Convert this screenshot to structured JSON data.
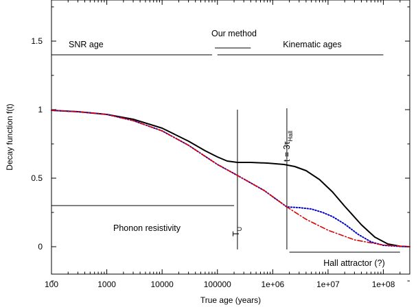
{
  "chart_data": {
    "type": "line",
    "xlabel": "True age (years)",
    "ylabel": "Decay function f(t)",
    "xscale": "log",
    "xlim": [
      100,
      300000000
    ],
    "ylim": [
      -0.2,
      1.8
    ],
    "x_tick_labels": [
      "100",
      "1000",
      "10000",
      "100000",
      "1e+06",
      "1e+07",
      "1e+08"
    ],
    "y_tick_labels": [
      "0",
      "0.5",
      "1",
      "1.5"
    ],
    "y_tick_values": [
      0,
      0.5,
      1,
      1.5
    ],
    "colors": {
      "black": "#000000",
      "blue": "#0000cc",
      "red": "#dd0000"
    },
    "series": [
      {
        "style": "solid",
        "color": "#000000",
        "x": [
          100,
          300,
          1000,
          3000,
          10000,
          30000,
          60000,
          100000,
          150000,
          230000,
          400000,
          800000,
          1600000,
          2500000,
          4000000,
          7000000,
          12000000,
          20000000,
          40000000,
          70000000,
          120000000,
          200000000,
          300000000
        ],
        "y": [
          0.995,
          0.985,
          0.965,
          0.93,
          0.865,
          0.77,
          0.7,
          0.655,
          0.625,
          0.615,
          0.615,
          0.61,
          0.6,
          0.585,
          0.555,
          0.49,
          0.4,
          0.295,
          0.16,
          0.07,
          0.02,
          0.003,
          0.0
        ]
      },
      {
        "style": "dotted",
        "color": "#0000cc",
        "x": [
          100,
          300,
          1000,
          3000,
          10000,
          30000,
          100000,
          230000,
          700000,
          1800000,
          3000000,
          5000000,
          8000000,
          12000000,
          20000000,
          35000000,
          60000000,
          100000000,
          200000000,
          300000000
        ],
        "y": [
          0.995,
          0.985,
          0.965,
          0.92,
          0.845,
          0.74,
          0.6,
          0.52,
          0.41,
          0.29,
          0.285,
          0.275,
          0.25,
          0.22,
          0.165,
          0.09,
          0.035,
          0.01,
          0.002,
          0.0
        ]
      },
      {
        "style": "dashdot",
        "color": "#dd0000",
        "x": [
          100,
          300,
          1000,
          3000,
          10000,
          30000,
          100000,
          230000,
          700000,
          1800000,
          4000000,
          10000000,
          30000000,
          100000000,
          300000000
        ],
        "y": [
          0.995,
          0.985,
          0.965,
          0.92,
          0.845,
          0.74,
          0.6,
          0.52,
          0.41,
          0.29,
          0.2,
          0.12,
          0.05,
          0.012,
          0.0
        ]
      }
    ],
    "annotations": {
      "snr_age": "SNR age",
      "our_method": "Our method",
      "kinematic_ages": "Kinematic ages",
      "phonon": "Phonon resistivity",
      "hall_attractor": "Hall attractor (?)",
      "tu": "T",
      "tu_sub": "U",
      "thall_prefix": "t = 3τ",
      "thall_sub": "Hall"
    },
    "ranges": {
      "snr_age": {
        "x": [
          100,
          80000
        ],
        "y": 1.4
      },
      "kinematic": {
        "x": [
          100000,
          100000000
        ],
        "y": 1.4
      },
      "our_method": {
        "x": [
          90000,
          400000
        ],
        "y": 1.45
      },
      "phonon": {
        "x": [
          100,
          200000
        ],
        "y": 0.3
      },
      "hall_attractor": {
        "x": [
          2000000,
          200000000
        ],
        "y": -0.04
      }
    },
    "verticals": {
      "tu": {
        "x": 230000,
        "y": [
          -0.02,
          1.0
        ]
      },
      "thall": {
        "x": 1800000,
        "y": [
          -0.02,
          1.01
        ]
      }
    },
    "legend": "none",
    "grid": false
  }
}
